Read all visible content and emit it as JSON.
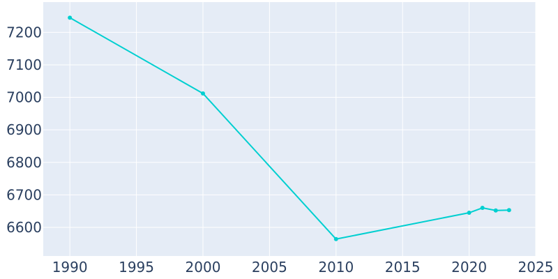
{
  "chart_data": {
    "type": "line",
    "title": "",
    "xlabel": "",
    "ylabel": "",
    "xlim": [
      1988,
      2025
    ],
    "ylim": [
      6512,
      7293
    ],
    "grid": true,
    "x_ticks": [
      1990,
      1995,
      2000,
      2005,
      2010,
      2015,
      2020,
      2025
    ],
    "y_ticks": [
      6600,
      6700,
      6800,
      6900,
      7000,
      7100,
      7200
    ],
    "colors": {
      "line": "#00cfd0",
      "plot_bg": "#e5ecf6",
      "grid": "#ffffff",
      "tick_text": "#2a3f5f"
    },
    "series": [
      {
        "x": [
          1990,
          2000,
          2010,
          2020,
          2021,
          2022,
          2023
        ],
        "y": [
          7245,
          7012,
          6564,
          6645,
          6660,
          6652,
          6653
        ]
      }
    ]
  }
}
